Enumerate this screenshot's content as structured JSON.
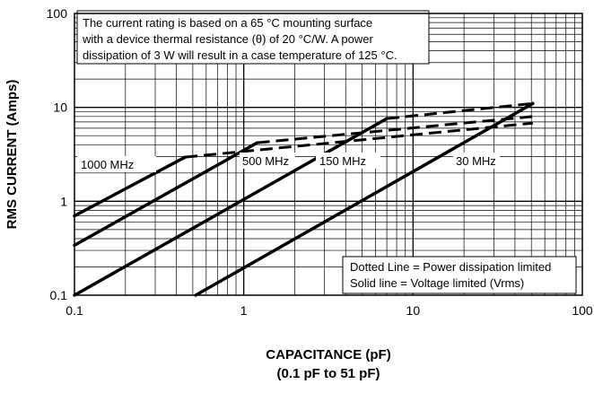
{
  "chart_data": {
    "type": "line",
    "x_scale": "log",
    "y_scale": "log",
    "xlim": [
      0.1,
      100
    ],
    "ylim": [
      0.1,
      100
    ],
    "xticks": [
      "0.1",
      "1",
      "10",
      "100"
    ],
    "yticks": [
      "0.1",
      "1",
      "10",
      "100"
    ],
    "xlabel": "CAPACITANCE (pF)",
    "xlabel_sub": "(0.1 pF to 51 pF)",
    "ylabel": "RMS CURRENT (Amps)",
    "grid": true,
    "note_lines": [
      "The current rating is based on a 65 °C mounting surface",
      "with a device thermal resistance (θ) of 20 °C/W. A power",
      "dissipation of 3 W will result in a case temperature of 125 °C."
    ],
    "legend_lines": [
      "Dotted Line = Power dissipation limited",
      "Solid line = Voltage limited (Vrms)"
    ],
    "legend_position": "bottom-right",
    "series": [
      {
        "name": "1000 MHz",
        "solid": [
          [
            0.1,
            0.7
          ],
          [
            0.45,
            2.95
          ]
        ],
        "dashed": [
          [
            0.45,
            2.95
          ],
          [
            51,
            6.8
          ]
        ]
      },
      {
        "name": "500 MHz",
        "solid": [
          [
            0.1,
            0.34
          ],
          [
            1.2,
            4.2
          ]
        ],
        "dashed": [
          [
            1.2,
            4.2
          ],
          [
            51,
            8.0
          ]
        ]
      },
      {
        "name": "150 MHz",
        "solid": [
          [
            0.1,
            0.1
          ],
          [
            7.0,
            7.6
          ]
        ],
        "dashed": [
          [
            7.0,
            7.6
          ],
          [
            51,
            11.0
          ]
        ]
      },
      {
        "name": "30 MHz",
        "solid": [
          [
            0.52,
            0.1
          ],
          [
            51,
            11.0
          ]
        ],
        "dashed": []
      }
    ]
  }
}
